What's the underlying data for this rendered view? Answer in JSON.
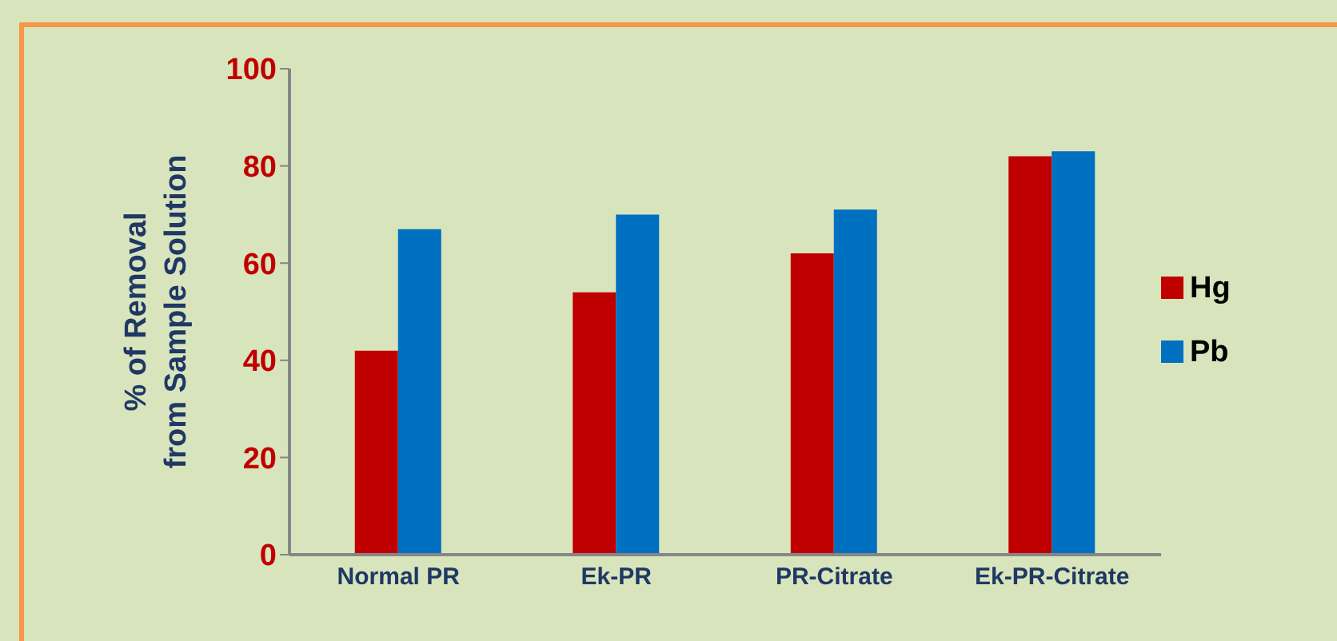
{
  "chart_data": {
    "type": "bar",
    "ylabel": "% of Removal from Sample Solution",
    "categories": [
      "Normal PR",
      "Ek-PR",
      "PR-Citrate",
      "Ek-PR-Citrate"
    ],
    "series": [
      {
        "name": "Hg",
        "color": "#c00000",
        "values": [
          42,
          54,
          62,
          82
        ]
      },
      {
        "name": "Pb",
        "color": "#0070c0",
        "values": [
          67,
          70,
          71,
          83
        ]
      }
    ],
    "ylim": [
      0,
      100
    ],
    "yticks": [
      0,
      20,
      40,
      60,
      80,
      100
    ],
    "grid": false,
    "legend": "right"
  }
}
